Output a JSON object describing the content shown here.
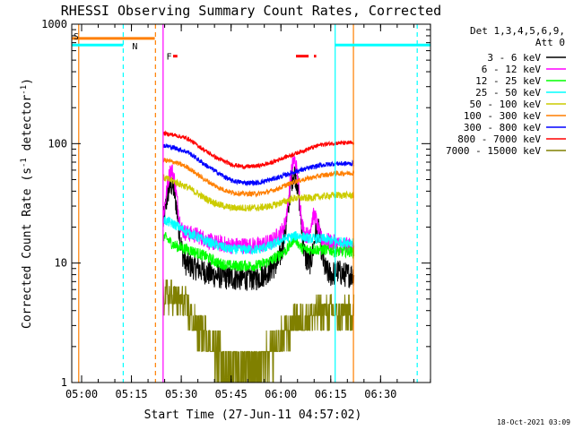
{
  "chart_data": {
    "type": "line",
    "title": "RHESSI Observing Summary Count Rates, Corrected",
    "xlabel": "Start Time (27-Jun-11 04:57:02)",
    "ylabel": "Corrected Count Rate (s⁻¹ detector⁻¹)",
    "ylabel_main": "Corrected Count Rate (s",
    "ylabel_sup1": "-1",
    "ylabel_mid": " detector",
    "ylabel_sup2": "-1",
    "ylabel_end": ")",
    "x_unit": "minutes since 04:57:02",
    "xlim": [
      0,
      108
    ],
    "y_scale": "log",
    "ylim": [
      1,
      1000
    ],
    "x_ticks": [
      {
        "t": 2.97,
        "label": "05:00"
      },
      {
        "t": 17.97,
        "label": "05:15"
      },
      {
        "t": 32.97,
        "label": "05:30"
      },
      {
        "t": 47.97,
        "label": "05:45"
      },
      {
        "t": 62.97,
        "label": "06:00"
      },
      {
        "t": 77.97,
        "label": "06:15"
      },
      {
        "t": 92.97,
        "label": "06:30"
      }
    ],
    "y_ticks": [
      {
        "v": 1,
        "label": "1"
      },
      {
        "v": 10,
        "label": "10"
      },
      {
        "v": 100,
        "label": "100"
      },
      {
        "v": 1000,
        "label": "1000"
      }
    ],
    "legend_header": [
      "Det 1,3,4,5,6,9,",
      "Att 0"
    ],
    "legend_position": "right",
    "grid": false,
    "data_gap": [
      0,
      27.5
    ],
    "data_end": 85.0,
    "series": [
      {
        "name": "3 - 6 keV",
        "color": "#000000",
        "base": [
          [
            27.5,
            14
          ],
          [
            30,
            9
          ],
          [
            33,
            10
          ],
          [
            38,
            9
          ],
          [
            42,
            8
          ],
          [
            48,
            7.5
          ],
          [
            52,
            7.5
          ],
          [
            56,
            7.5
          ],
          [
            59,
            8.5
          ],
          [
            62,
            10
          ],
          [
            64,
            14
          ],
          [
            66,
            13
          ],
          [
            70,
            10
          ],
          [
            73,
            9.5
          ],
          [
            75,
            9
          ],
          [
            78,
            8
          ],
          [
            80,
            8.5
          ],
          [
            82,
            8
          ],
          [
            85,
            8
          ]
        ],
        "peaks": [
          [
            30,
            45,
            2.0
          ],
          [
            67,
            56,
            1.8
          ],
          [
            74,
            19,
            1.3
          ]
        ],
        "noise": 0.18
      },
      {
        "name": "6 - 12 keV",
        "color": "#ff00ff",
        "base": [
          [
            27.5,
            20
          ],
          [
            30,
            19
          ],
          [
            34,
            18
          ],
          [
            38,
            17
          ],
          [
            42,
            15
          ],
          [
            48,
            14
          ],
          [
            52,
            14
          ],
          [
            56,
            14
          ],
          [
            60,
            15
          ],
          [
            63,
            18
          ],
          [
            65,
            22
          ],
          [
            70,
            17
          ],
          [
            74,
            16
          ],
          [
            78,
            15
          ],
          [
            82,
            14
          ],
          [
            85,
            14
          ]
        ],
        "peaks": [
          [
            30,
            60,
            1.7
          ],
          [
            67,
            72,
            1.5
          ],
          [
            73,
            25,
            1.2
          ]
        ],
        "noise": 0.12
      },
      {
        "name": "12 - 25 keV",
        "color": "#00ff00",
        "base": [
          [
            27.5,
            17
          ],
          [
            31,
            14
          ],
          [
            35,
            13
          ],
          [
            40,
            11.5
          ],
          [
            44,
            10
          ],
          [
            48,
            9.5
          ],
          [
            52,
            9.5
          ],
          [
            56,
            9.5
          ],
          [
            60,
            10.5
          ],
          [
            64,
            12.5
          ],
          [
            68,
            13
          ],
          [
            72,
            13
          ],
          [
            76,
            13
          ],
          [
            80,
            12.5
          ],
          [
            85,
            12.5
          ]
        ],
        "peaks": [
          [
            67,
            16,
            1.5
          ]
        ],
        "noise": 0.08
      },
      {
        "name": "25 - 50 keV",
        "color": "#00ffff",
        "base": [
          [
            27.5,
            23
          ],
          [
            31,
            21
          ],
          [
            35,
            18
          ],
          [
            40,
            15.5
          ],
          [
            44,
            14
          ],
          [
            48,
            13
          ],
          [
            52,
            13
          ],
          [
            56,
            13
          ],
          [
            60,
            14
          ],
          [
            64,
            16
          ],
          [
            68,
            17
          ],
          [
            72,
            16
          ],
          [
            76,
            16
          ],
          [
            80,
            15
          ],
          [
            85,
            15
          ]
        ],
        "peaks": [],
        "noise": 0.07
      },
      {
        "name": "50 - 100 keV",
        "color": "#cccc00",
        "base": [
          [
            27.5,
            52
          ],
          [
            31,
            48
          ],
          [
            35,
            43
          ],
          [
            40,
            35
          ],
          [
            44,
            31
          ],
          [
            48,
            29
          ],
          [
            52,
            29
          ],
          [
            56,
            29
          ],
          [
            60,
            30
          ],
          [
            63,
            32
          ],
          [
            67,
            35
          ],
          [
            71,
            35
          ],
          [
            75,
            36
          ],
          [
            79,
            37
          ],
          [
            85,
            37
          ]
        ],
        "peaks": [],
        "noise": 0.05
      },
      {
        "name": "100 - 300 keV",
        "color": "#ff7f00",
        "base": [
          [
            27.5,
            73
          ],
          [
            31,
            70
          ],
          [
            35,
            63
          ],
          [
            40,
            50
          ],
          [
            44,
            43
          ],
          [
            48,
            39
          ],
          [
            52,
            38
          ],
          [
            56,
            38
          ],
          [
            60,
            40
          ],
          [
            63,
            43
          ],
          [
            67,
            48
          ],
          [
            71,
            51
          ],
          [
            75,
            54
          ],
          [
            79,
            56
          ],
          [
            85,
            57
          ]
        ],
        "peaks": [],
        "noise": 0.035
      },
      {
        "name": "300 - 800 keV",
        "color": "#0000ff",
        "base": [
          [
            27.5,
            97
          ],
          [
            31,
            92
          ],
          [
            35,
            85
          ],
          [
            40,
            67
          ],
          [
            44,
            57
          ],
          [
            48,
            49
          ],
          [
            52,
            47
          ],
          [
            56,
            47
          ],
          [
            60,
            50
          ],
          [
            63,
            53
          ],
          [
            67,
            58
          ],
          [
            71,
            62
          ],
          [
            75,
            66
          ],
          [
            79,
            68
          ],
          [
            85,
            68
          ]
        ],
        "peaks": [],
        "noise": 0.035
      },
      {
        "name": "800 - 7000 keV",
        "color": "#ff0000",
        "base": [
          [
            27.5,
            122
          ],
          [
            31,
            118
          ],
          [
            35,
            110
          ],
          [
            40,
            88
          ],
          [
            44,
            75
          ],
          [
            48,
            67
          ],
          [
            52,
            64
          ],
          [
            56,
            65
          ],
          [
            60,
            69
          ],
          [
            63,
            75
          ],
          [
            67,
            82
          ],
          [
            71,
            90
          ],
          [
            75,
            98
          ],
          [
            79,
            101
          ],
          [
            85,
            101
          ]
        ],
        "peaks": [],
        "noise": 0.03
      },
      {
        "name": "7000 - 15000 keV",
        "color": "#808000",
        "base": [
          [
            27.5,
            5.5
          ],
          [
            31,
            5
          ],
          [
            34,
            4.5
          ],
          [
            37,
            3
          ],
          [
            40,
            2.6
          ],
          [
            43,
            1.8
          ],
          [
            46,
            1.6
          ],
          [
            50,
            1.4
          ],
          [
            54,
            1.4
          ],
          [
            58,
            1.6
          ],
          [
            61,
            1.9
          ],
          [
            64,
            2.5
          ],
          [
            67,
            3.2
          ],
          [
            70,
            3.5
          ],
          [
            74,
            3.8
          ],
          [
            78,
            3.8
          ],
          [
            85,
            3.8
          ]
        ],
        "peaks": [],
        "noise": 0.25,
        "quantized": true
      }
    ],
    "annotations": {
      "markers": [
        {
          "label": "S",
          "t": 0.5,
          "v": 800,
          "color": "#ff7f00"
        },
        {
          "label": "N",
          "t": 18.2,
          "v": 660,
          "color": "#00ffff"
        },
        {
          "label": "F",
          "t": 28.5,
          "v": 540,
          "color": "#ff0000"
        }
      ],
      "orange_segment": {
        "t0": 0,
        "t1": 25.0,
        "v": 760,
        "color": "#ff7f00"
      },
      "cyan_segments": [
        {
          "t0": 0,
          "t1": 15.5,
          "v": 670
        },
        {
          "t0": 79.2,
          "t1": 108,
          "v": 670
        }
      ],
      "cyan_color": "#00ffff",
      "red_segments": [
        {
          "t0": 30.5,
          "t1": 31.8
        },
        {
          "t0": 67.5,
          "t1": 71.3
        },
        {
          "t0": 72.9,
          "t1": 73.6
        }
      ],
      "red_v": 540,
      "red_color": "#ff0000",
      "vlines": [
        {
          "t": 2.1,
          "color": "#ff7f00",
          "dashed": false
        },
        {
          "t": 15.5,
          "color": "#00ffff",
          "dashed": true
        },
        {
          "t": 25.2,
          "color": "#ff7f00",
          "dashed": true
        },
        {
          "t": 27.5,
          "color": "#ff00ff",
          "dashed": false
        },
        {
          "t": 79.3,
          "color": "#00ffff",
          "dashed": false
        },
        {
          "t": 84.8,
          "color": "#ff7f00",
          "dashed": false
        },
        {
          "t": 104.0,
          "color": "#00ffff",
          "dashed": true
        }
      ]
    }
  },
  "footer": {
    "date_stamp": "18-Oct-2021 03:09"
  }
}
